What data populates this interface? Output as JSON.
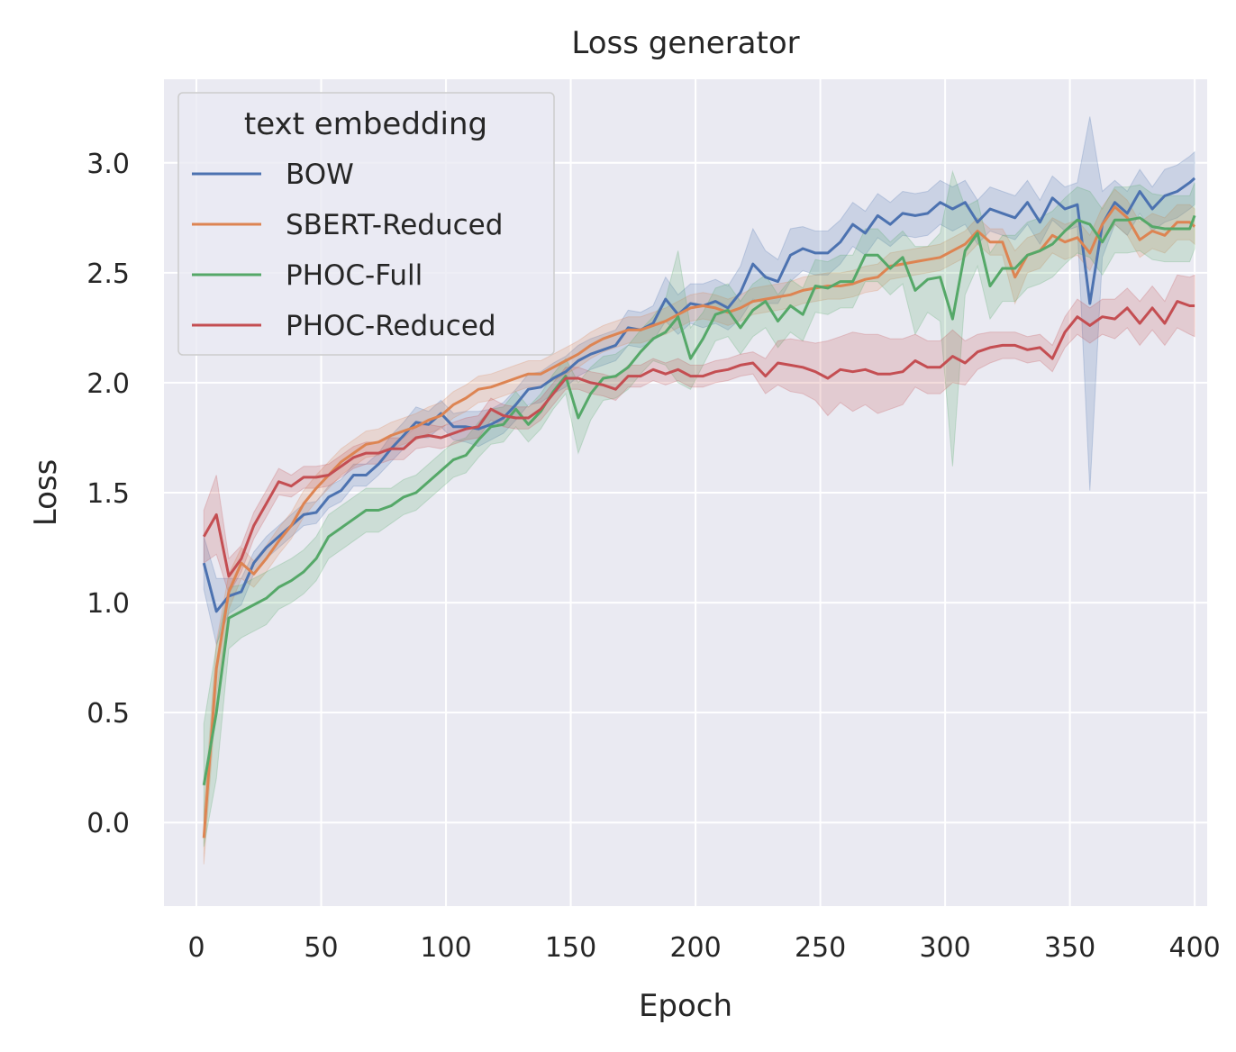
{
  "chart_data": {
    "type": "line",
    "title": "Loss generator",
    "xlabel": "Epoch",
    "ylabel": "Loss",
    "xlim": [
      -13,
      405
    ],
    "ylim": [
      -0.38,
      3.38
    ],
    "xticks": [
      0,
      50,
      100,
      150,
      200,
      250,
      300,
      350,
      400
    ],
    "yticks": [
      0.0,
      0.5,
      1.0,
      1.5,
      2.0,
      2.5,
      3.0
    ],
    "xtick_labels": [
      "0",
      "50",
      "100",
      "150",
      "200",
      "250",
      "300",
      "350",
      "400"
    ],
    "ytick_labels": [
      "0.0",
      "0.5",
      "1.0",
      "1.5",
      "2.0",
      "2.5",
      "3.0"
    ],
    "grid": true,
    "legend": {
      "title": "text embedding",
      "placement": "top-left"
    },
    "x": [
      3,
      8,
      13,
      18,
      23,
      28,
      33,
      38,
      43,
      48,
      53,
      58,
      63,
      68,
      73,
      78,
      83,
      88,
      93,
      98,
      103,
      108,
      113,
      118,
      123,
      128,
      133,
      138,
      143,
      148,
      153,
      158,
      163,
      168,
      173,
      178,
      183,
      188,
      193,
      198,
      203,
      208,
      213,
      218,
      223,
      228,
      233,
      238,
      243,
      248,
      253,
      258,
      263,
      268,
      273,
      278,
      283,
      288,
      293,
      298,
      303,
      308,
      313,
      318,
      323,
      328,
      333,
      338,
      343,
      348,
      353,
      358,
      363,
      368,
      373,
      378,
      383,
      388,
      393,
      398,
      400
    ],
    "series": [
      {
        "name": "BOW",
        "color": "#4c72b0",
        "values": [
          1.18,
          0.96,
          1.03,
          1.05,
          1.18,
          1.25,
          1.3,
          1.35,
          1.4,
          1.41,
          1.48,
          1.51,
          1.58,
          1.58,
          1.63,
          1.7,
          1.76,
          1.82,
          1.81,
          1.86,
          1.8,
          1.8,
          1.79,
          1.81,
          1.84,
          1.9,
          1.97,
          1.98,
          2.02,
          2.05,
          2.1,
          2.13,
          2.15,
          2.17,
          2.25,
          2.24,
          2.27,
          2.38,
          2.31,
          2.36,
          2.35,
          2.37,
          2.34,
          2.41,
          2.54,
          2.48,
          2.46,
          2.58,
          2.61,
          2.59,
          2.59,
          2.64,
          2.72,
          2.68,
          2.76,
          2.72,
          2.77,
          2.76,
          2.77,
          2.82,
          2.79,
          2.82,
          2.73,
          2.79,
          2.77,
          2.75,
          2.82,
          2.73,
          2.84,
          2.79,
          2.81,
          2.36,
          2.72,
          2.82,
          2.77,
          2.87,
          2.79,
          2.85,
          2.87,
          2.91,
          2.93
        ],
        "band": [
          0.12,
          0.15,
          0.08,
          0.06,
          0.05,
          0.05,
          0.05,
          0.05,
          0.05,
          0.05,
          0.05,
          0.05,
          0.05,
          0.05,
          0.05,
          0.06,
          0.06,
          0.07,
          0.06,
          0.06,
          0.06,
          0.07,
          0.08,
          0.07,
          0.07,
          0.07,
          0.07,
          0.07,
          0.07,
          0.07,
          0.07,
          0.07,
          0.07,
          0.07,
          0.08,
          0.08,
          0.08,
          0.1,
          0.09,
          0.09,
          0.1,
          0.1,
          0.1,
          0.12,
          0.16,
          0.12,
          0.1,
          0.12,
          0.1,
          0.1,
          0.1,
          0.1,
          0.1,
          0.1,
          0.1,
          0.1,
          0.1,
          0.1,
          0.1,
          0.1,
          0.1,
          0.1,
          0.1,
          0.1,
          0.1,
          0.1,
          0.1,
          0.1,
          0.1,
          0.1,
          0.1,
          0.85,
          0.15,
          0.1,
          0.1,
          0.1,
          0.1,
          0.12,
          0.12,
          0.12,
          0.12
        ]
      },
      {
        "name": "SBERT-Reduced",
        "color": "#dd8452",
        "values": [
          -0.07,
          0.7,
          1.05,
          1.18,
          1.13,
          1.2,
          1.28,
          1.35,
          1.45,
          1.52,
          1.58,
          1.64,
          1.68,
          1.72,
          1.73,
          1.76,
          1.78,
          1.8,
          1.83,
          1.85,
          1.9,
          1.93,
          1.97,
          1.98,
          2.0,
          2.02,
          2.04,
          2.04,
          2.07,
          2.1,
          2.13,
          2.17,
          2.2,
          2.22,
          2.24,
          2.24,
          2.26,
          2.28,
          2.31,
          2.34,
          2.35,
          2.34,
          2.32,
          2.34,
          2.37,
          2.38,
          2.39,
          2.4,
          2.42,
          2.43,
          2.44,
          2.44,
          2.45,
          2.47,
          2.48,
          2.53,
          2.54,
          2.55,
          2.56,
          2.57,
          2.6,
          2.63,
          2.69,
          2.64,
          2.64,
          2.48,
          2.58,
          2.6,
          2.67,
          2.64,
          2.66,
          2.59,
          2.72,
          2.8,
          2.75,
          2.65,
          2.69,
          2.67,
          2.73,
          2.73,
          2.71
        ],
        "band": [
          0.12,
          0.12,
          0.08,
          0.07,
          0.06,
          0.06,
          0.06,
          0.06,
          0.06,
          0.06,
          0.06,
          0.06,
          0.06,
          0.06,
          0.06,
          0.06,
          0.06,
          0.06,
          0.06,
          0.06,
          0.06,
          0.06,
          0.06,
          0.06,
          0.06,
          0.06,
          0.06,
          0.06,
          0.06,
          0.06,
          0.06,
          0.06,
          0.06,
          0.06,
          0.06,
          0.06,
          0.06,
          0.06,
          0.06,
          0.06,
          0.06,
          0.06,
          0.06,
          0.06,
          0.06,
          0.06,
          0.06,
          0.06,
          0.06,
          0.06,
          0.06,
          0.06,
          0.06,
          0.06,
          0.06,
          0.06,
          0.06,
          0.06,
          0.06,
          0.06,
          0.06,
          0.06,
          0.06,
          0.06,
          0.06,
          0.12,
          0.08,
          0.08,
          0.08,
          0.08,
          0.08,
          0.08,
          0.08,
          0.08,
          0.08,
          0.08,
          0.08,
          0.08,
          0.08,
          0.08,
          0.08
        ]
      },
      {
        "name": "PHOC-Full",
        "color": "#55a868",
        "values": [
          0.17,
          0.5,
          0.93,
          0.96,
          0.99,
          1.02,
          1.07,
          1.1,
          1.14,
          1.2,
          1.3,
          1.34,
          1.38,
          1.42,
          1.42,
          1.44,
          1.48,
          1.5,
          1.55,
          1.6,
          1.65,
          1.67,
          1.74,
          1.8,
          1.81,
          1.88,
          1.81,
          1.87,
          1.96,
          2.03,
          1.84,
          1.95,
          2.02,
          2.03,
          2.07,
          2.14,
          2.2,
          2.23,
          2.3,
          2.11,
          2.2,
          2.31,
          2.33,
          2.25,
          2.33,
          2.37,
          2.28,
          2.35,
          2.31,
          2.44,
          2.43,
          2.46,
          2.46,
          2.58,
          2.58,
          2.52,
          2.57,
          2.42,
          2.47,
          2.48,
          2.29,
          2.6,
          2.68,
          2.44,
          2.52,
          2.52,
          2.58,
          2.6,
          2.63,
          2.69,
          2.74,
          2.72,
          2.64,
          2.74,
          2.74,
          2.75,
          2.71,
          2.7,
          2.7,
          2.7,
          2.76
        ],
        "band": [
          0.28,
          0.3,
          0.14,
          0.12,
          0.12,
          0.12,
          0.1,
          0.1,
          0.1,
          0.1,
          0.1,
          0.1,
          0.1,
          0.1,
          0.1,
          0.08,
          0.08,
          0.08,
          0.08,
          0.08,
          0.08,
          0.08,
          0.08,
          0.08,
          0.08,
          0.08,
          0.08,
          0.08,
          0.08,
          0.08,
          0.16,
          0.12,
          0.1,
          0.1,
          0.1,
          0.1,
          0.1,
          0.15,
          0.3,
          0.14,
          0.12,
          0.12,
          0.12,
          0.12,
          0.12,
          0.12,
          0.12,
          0.12,
          0.12,
          0.12,
          0.12,
          0.12,
          0.12,
          0.12,
          0.12,
          0.12,
          0.12,
          0.2,
          0.15,
          0.2,
          0.67,
          0.2,
          0.15,
          0.15,
          0.15,
          0.15,
          0.15,
          0.15,
          0.15,
          0.15,
          0.15,
          0.15,
          0.15,
          0.15,
          0.15,
          0.15,
          0.15,
          0.15,
          0.15,
          0.15,
          0.15
        ]
      },
      {
        "name": "PHOC-Reduced",
        "color": "#c44e52",
        "values": [
          1.3,
          1.4,
          1.12,
          1.2,
          1.35,
          1.45,
          1.55,
          1.53,
          1.57,
          1.57,
          1.58,
          1.62,
          1.66,
          1.68,
          1.68,
          1.7,
          1.7,
          1.75,
          1.76,
          1.75,
          1.77,
          1.79,
          1.8,
          1.88,
          1.85,
          1.84,
          1.84,
          1.88,
          1.95,
          2.02,
          2.02,
          2.0,
          1.99,
          1.97,
          2.03,
          2.03,
          2.06,
          2.04,
          2.06,
          2.03,
          2.03,
          2.05,
          2.06,
          2.08,
          2.09,
          2.03,
          2.09,
          2.08,
          2.07,
          2.05,
          2.02,
          2.06,
          2.05,
          2.06,
          2.04,
          2.04,
          2.05,
          2.1,
          2.07,
          2.07,
          2.12,
          2.09,
          2.14,
          2.16,
          2.17,
          2.17,
          2.15,
          2.16,
          2.11,
          2.23,
          2.3,
          2.26,
          2.3,
          2.29,
          2.34,
          2.27,
          2.34,
          2.27,
          2.37,
          2.35,
          2.35
        ],
        "band": [
          0.12,
          0.18,
          0.08,
          0.06,
          0.06,
          0.06,
          0.06,
          0.05,
          0.05,
          0.05,
          0.05,
          0.05,
          0.05,
          0.05,
          0.05,
          0.05,
          0.05,
          0.05,
          0.05,
          0.05,
          0.05,
          0.05,
          0.05,
          0.05,
          0.05,
          0.05,
          0.05,
          0.05,
          0.05,
          0.05,
          0.05,
          0.05,
          0.05,
          0.05,
          0.05,
          0.05,
          0.05,
          0.05,
          0.05,
          0.05,
          0.05,
          0.05,
          0.05,
          0.05,
          0.05,
          0.08,
          0.1,
          0.12,
          0.12,
          0.13,
          0.17,
          0.15,
          0.18,
          0.16,
          0.18,
          0.16,
          0.15,
          0.12,
          0.12,
          0.12,
          0.12,
          0.1,
          0.08,
          0.07,
          0.06,
          0.06,
          0.06,
          0.06,
          0.06,
          0.07,
          0.08,
          0.08,
          0.08,
          0.09,
          0.09,
          0.1,
          0.1,
          0.1,
          0.12,
          0.13,
          0.14
        ]
      }
    ]
  }
}
